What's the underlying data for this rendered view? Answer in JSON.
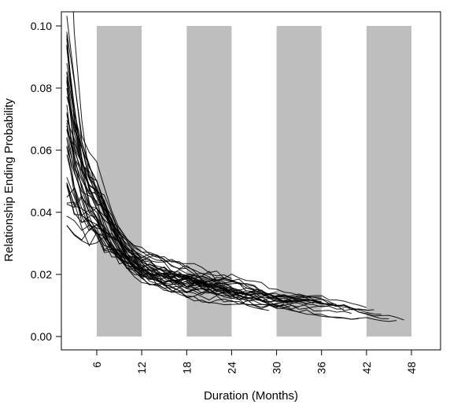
{
  "chart_data": {
    "type": "line",
    "title": "",
    "xlabel": "Duration (Months)",
    "ylabel": "Relationship Ending Probability",
    "xlim": [
      1.3,
      51.9
    ],
    "ylim": [
      0,
      0.1
    ],
    "grid": false,
    "legend": null,
    "x_ticks": [
      6,
      12,
      18,
      24,
      30,
      36,
      42,
      48
    ],
    "x_tick_labels": [
      "6",
      "12",
      "18",
      "24",
      "30",
      "36",
      "42",
      "48"
    ],
    "y_ticks": [
      0.0,
      0.02,
      0.04,
      0.06,
      0.08,
      0.1
    ],
    "y_tick_labels": [
      "0.00",
      "0.02",
      "0.04",
      "0.06",
      "0.08",
      "0.10"
    ],
    "shaded_bands": {
      "color": "#BEBEBE",
      "y_range": [
        0,
        0.1
      ],
      "ranges": [
        [
          6,
          12
        ],
        [
          18,
          24
        ],
        [
          30,
          36
        ],
        [
          42,
          48
        ]
      ]
    },
    "series_style": {
      "color": "#000000",
      "width": 1,
      "opacity": 0.9
    },
    "n_series": 40,
    "month_start": 2,
    "month_step": 1,
    "end_months": [
      47,
      46,
      45,
      44,
      43,
      42,
      42,
      41,
      40,
      39,
      38,
      38,
      37,
      36,
      36,
      35,
      34,
      34,
      33,
      32,
      32,
      31,
      30,
      30,
      29,
      28,
      28,
      27,
      26,
      26,
      25,
      24,
      24,
      23,
      22,
      22,
      21,
      20,
      19,
      18
    ],
    "envelope": {
      "months": [
        2,
        3,
        4,
        5,
        6,
        8,
        10,
        12,
        15,
        18,
        21,
        24,
        27,
        30,
        33,
        36,
        39,
        42,
        45,
        47
      ],
      "low": [
        0.035,
        0.033,
        0.031,
        0.029,
        0.028,
        0.024,
        0.02,
        0.017,
        0.014,
        0.012,
        0.011,
        0.01,
        0.009,
        0.008,
        0.0075,
        0.0065,
        0.0058,
        0.005,
        0.0047,
        0.0045
      ],
      "high": [
        0.105,
        0.082,
        0.068,
        0.06,
        0.055,
        0.042,
        0.033,
        0.028,
        0.025,
        0.024,
        0.022,
        0.02,
        0.018,
        0.016,
        0.0145,
        0.013,
        0.0115,
        0.01,
        0.008,
        0.0065
      ]
    },
    "clipped_top_series": {
      "extra_at_start": 0.06,
      "decay_months": 1.3
    },
    "rng_seed": 424242,
    "drift_step": 0.3,
    "mean_reversion": 0.055,
    "point_jitter": 0.06
  }
}
